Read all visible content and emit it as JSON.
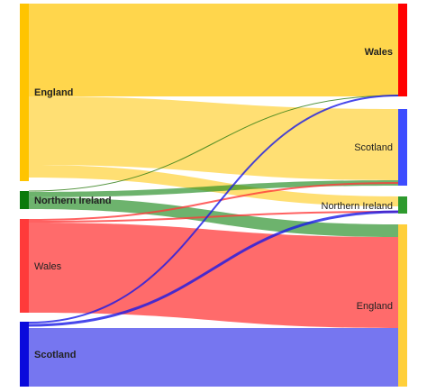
{
  "sankey": {
    "source_nodes": [
      {
        "id": "src-england",
        "label": "England",
        "color": "#ffc400",
        "bold": true
      },
      {
        "id": "src-ni",
        "label": "Northern Ireland",
        "color": "#0a7a0a",
        "bold": true
      },
      {
        "id": "src-wales",
        "label": "Wales",
        "color": "#ff3a3a",
        "bold": false
      },
      {
        "id": "src-scotland",
        "label": "Scotland",
        "color": "#0a0adc",
        "bold": true
      }
    ],
    "target_nodes": [
      {
        "id": "tgt-wales",
        "label": "Wales",
        "color": "#ff0000",
        "bold": true
      },
      {
        "id": "tgt-scotland",
        "label": "Scotland",
        "color": "#3d4cff",
        "bold": false
      },
      {
        "id": "tgt-ni",
        "label": "Northern Ireland",
        "color": "#2e9a2e",
        "bold": false
      },
      {
        "id": "tgt-england",
        "label": "England",
        "color": "#ffcf3a",
        "bold": false
      }
    ],
    "links": [
      {
        "source": "England",
        "target": "Wales",
        "color": "#ffc400"
      },
      {
        "source": "England",
        "target": "Scotland",
        "color": "#ffc400"
      },
      {
        "source": "England",
        "target": "Northern Ireland",
        "color": "#ffc400"
      },
      {
        "source": "Northern Ireland",
        "target": "Wales",
        "color": "#1f7a1f"
      },
      {
        "source": "Northern Ireland",
        "target": "Scotland",
        "color": "#1f8a1f"
      },
      {
        "source": "Northern Ireland",
        "target": "England",
        "color": "#1f8a1f"
      },
      {
        "source": "Wales",
        "target": "Scotland",
        "color": "#ff3a3a"
      },
      {
        "source": "Wales",
        "target": "Northern Ireland",
        "color": "#ff3a3a"
      },
      {
        "source": "Wales",
        "target": "England",
        "color": "#ff3a3a"
      },
      {
        "source": "Scotland",
        "target": "Wales",
        "color": "#1a1ae6"
      },
      {
        "source": "Scotland",
        "target": "Northern Ireland",
        "color": "#1a1ae6"
      },
      {
        "source": "Scotland",
        "target": "England",
        "color": "#1a1ae6"
      }
    ]
  }
}
